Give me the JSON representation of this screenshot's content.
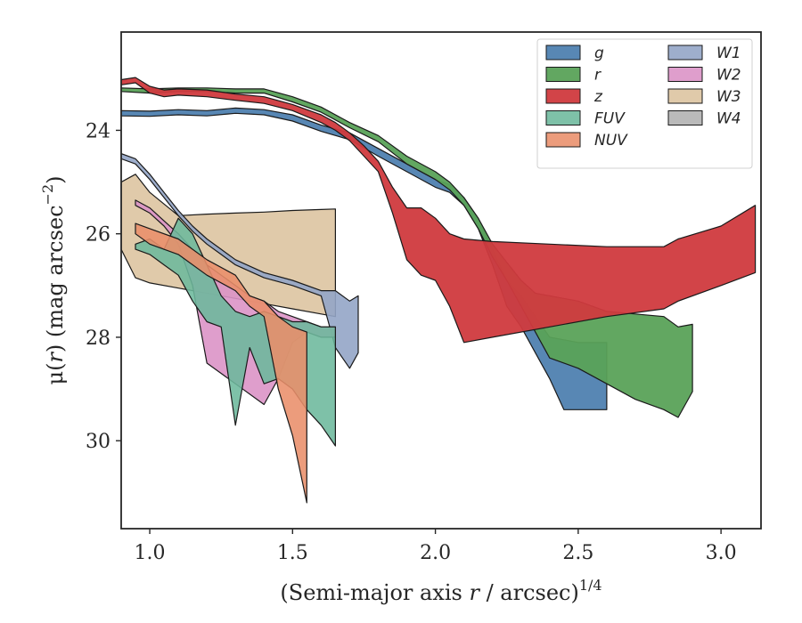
{
  "chart_data": {
    "type": "area",
    "title": "",
    "xlabel": {
      "text": "(Semi-major axis ",
      "var": "r",
      "unit": " / arcsec)",
      "sup": "1/4"
    },
    "ylabel": {
      "text": "μ(",
      "var": "r",
      "unit": ") (mag arcsec",
      "sup": "−2",
      "close": ")"
    },
    "xlim": [
      0.9,
      3.14
    ],
    "ylim": [
      31.7,
      22.1
    ],
    "y_inverted": true,
    "grid": false,
    "xticks": [
      1.0,
      1.5,
      2.0,
      2.5,
      3.0
    ],
    "xtick_labels": [
      "1.0",
      "1.5",
      "2.0",
      "2.5",
      "3.0"
    ],
    "yticks": [
      24,
      26,
      28,
      30
    ],
    "ytick_labels": [
      "24",
      "26",
      "28",
      "30"
    ],
    "legend": {
      "location": "top-right",
      "columns": 2
    },
    "series": [
      {
        "name": "g",
        "color": "#4f81b0",
        "opacity": 0.95,
        "upper": [
          [
            0.9,
            23.62
          ],
          [
            1.0,
            23.63
          ],
          [
            1.1,
            23.6
          ],
          [
            1.2,
            23.62
          ],
          [
            1.3,
            23.57
          ],
          [
            1.4,
            23.6
          ],
          [
            1.5,
            23.7
          ],
          [
            1.6,
            23.9
          ],
          [
            1.7,
            24.05
          ],
          [
            1.8,
            24.35
          ],
          [
            1.9,
            24.65
          ],
          [
            2.0,
            24.95
          ],
          [
            2.05,
            25.05
          ],
          [
            2.1,
            25.3
          ],
          [
            2.15,
            25.7
          ],
          [
            2.2,
            26.3
          ],
          [
            2.25,
            26.9
          ],
          [
            2.3,
            27.2
          ],
          [
            2.35,
            27.6
          ],
          [
            2.4,
            28.0
          ],
          [
            2.45,
            28.05
          ],
          [
            2.5,
            28.1
          ],
          [
            2.6,
            28.1
          ]
        ],
        "lower": [
          [
            0.9,
            23.72
          ],
          [
            1.0,
            23.73
          ],
          [
            1.1,
            23.7
          ],
          [
            1.2,
            23.72
          ],
          [
            1.3,
            23.67
          ],
          [
            1.4,
            23.7
          ],
          [
            1.5,
            23.82
          ],
          [
            1.6,
            24.02
          ],
          [
            1.7,
            24.18
          ],
          [
            1.8,
            24.5
          ],
          [
            1.9,
            24.8
          ],
          [
            2.0,
            25.1
          ],
          [
            2.05,
            25.2
          ],
          [
            2.1,
            25.45
          ],
          [
            2.15,
            25.9
          ],
          [
            2.2,
            26.6
          ],
          [
            2.25,
            27.4
          ],
          [
            2.3,
            27.8
          ],
          [
            2.35,
            28.3
          ],
          [
            2.4,
            28.8
          ],
          [
            2.45,
            29.4
          ],
          [
            2.5,
            29.4
          ],
          [
            2.6,
            29.4
          ]
        ]
      },
      {
        "name": "r",
        "color": "#5aa258",
        "opacity": 0.95,
        "upper": [
          [
            0.9,
            23.18
          ],
          [
            1.0,
            23.2
          ],
          [
            1.1,
            23.18
          ],
          [
            1.2,
            23.18
          ],
          [
            1.3,
            23.2
          ],
          [
            1.4,
            23.2
          ],
          [
            1.5,
            23.35
          ],
          [
            1.6,
            23.55
          ],
          [
            1.7,
            23.85
          ],
          [
            1.8,
            24.1
          ],
          [
            1.9,
            24.5
          ],
          [
            2.0,
            24.8
          ],
          [
            2.05,
            25.0
          ],
          [
            2.1,
            25.3
          ],
          [
            2.15,
            25.7
          ],
          [
            2.2,
            26.2
          ],
          [
            2.25,
            26.55
          ],
          [
            2.3,
            26.9
          ],
          [
            2.35,
            27.15
          ],
          [
            2.4,
            27.2
          ],
          [
            2.5,
            27.3
          ],
          [
            2.6,
            27.5
          ],
          [
            2.7,
            27.55
          ],
          [
            2.8,
            27.6
          ],
          [
            2.85,
            27.8
          ],
          [
            2.9,
            27.75
          ]
        ],
        "lower": [
          [
            0.9,
            23.25
          ],
          [
            1.0,
            23.28
          ],
          [
            1.1,
            23.25
          ],
          [
            1.2,
            23.25
          ],
          [
            1.3,
            23.28
          ],
          [
            1.4,
            23.28
          ],
          [
            1.5,
            23.45
          ],
          [
            1.6,
            23.65
          ],
          [
            1.7,
            23.95
          ],
          [
            1.8,
            24.22
          ],
          [
            1.9,
            24.65
          ],
          [
            2.0,
            24.95
          ],
          [
            2.05,
            25.15
          ],
          [
            2.1,
            25.45
          ],
          [
            2.15,
            25.9
          ],
          [
            2.2,
            26.45
          ],
          [
            2.25,
            26.9
          ],
          [
            2.3,
            27.4
          ],
          [
            2.35,
            27.9
          ],
          [
            2.4,
            28.4
          ],
          [
            2.5,
            28.6
          ],
          [
            2.6,
            28.9
          ],
          [
            2.7,
            29.2
          ],
          [
            2.8,
            29.4
          ],
          [
            2.85,
            29.55
          ],
          [
            2.9,
            29.05
          ]
        ]
      },
      {
        "name": "z",
        "color": "#d03a3e",
        "opacity": 0.95,
        "upper": [
          [
            0.9,
            23.02
          ],
          [
            0.95,
            22.98
          ],
          [
            1.0,
            23.15
          ],
          [
            1.05,
            23.22
          ],
          [
            1.1,
            23.2
          ],
          [
            1.2,
            23.22
          ],
          [
            1.3,
            23.3
          ],
          [
            1.4,
            23.35
          ],
          [
            1.5,
            23.5
          ],
          [
            1.6,
            23.7
          ],
          [
            1.65,
            23.85
          ],
          [
            1.7,
            24.05
          ],
          [
            1.75,
            24.3
          ],
          [
            1.8,
            24.6
          ],
          [
            1.85,
            25.1
          ],
          [
            1.9,
            25.5
          ],
          [
            1.95,
            25.5
          ],
          [
            2.0,
            25.7
          ],
          [
            2.05,
            26.0
          ],
          [
            2.1,
            26.1
          ],
          [
            2.2,
            26.15
          ],
          [
            2.4,
            26.2
          ],
          [
            2.6,
            26.25
          ],
          [
            2.8,
            26.25
          ],
          [
            2.85,
            26.1
          ],
          [
            3.0,
            25.85
          ],
          [
            3.12,
            25.45
          ]
        ],
        "lower": [
          [
            0.9,
            23.12
          ],
          [
            0.95,
            23.08
          ],
          [
            1.0,
            23.28
          ],
          [
            1.05,
            23.35
          ],
          [
            1.1,
            23.32
          ],
          [
            1.2,
            23.35
          ],
          [
            1.3,
            23.42
          ],
          [
            1.4,
            23.48
          ],
          [
            1.5,
            23.62
          ],
          [
            1.6,
            23.85
          ],
          [
            1.65,
            24.0
          ],
          [
            1.7,
            24.2
          ],
          [
            1.75,
            24.5
          ],
          [
            1.8,
            24.8
          ],
          [
            1.85,
            25.6
          ],
          [
            1.9,
            26.5
          ],
          [
            1.95,
            26.8
          ],
          [
            2.0,
            26.9
          ],
          [
            2.05,
            27.4
          ],
          [
            2.1,
            28.1
          ],
          [
            2.2,
            28.0
          ],
          [
            2.4,
            27.8
          ],
          [
            2.6,
            27.6
          ],
          [
            2.8,
            27.45
          ],
          [
            2.85,
            27.3
          ],
          [
            3.0,
            27.0
          ],
          [
            3.12,
            26.75
          ]
        ]
      },
      {
        "name": "FUV",
        "color": "#6cb89c",
        "opacity": 0.88,
        "upper": [
          [
            0.95,
            26.2
          ],
          [
            1.0,
            26.1
          ],
          [
            1.05,
            26.3
          ],
          [
            1.1,
            25.7
          ],
          [
            1.15,
            26.0
          ],
          [
            1.2,
            26.6
          ],
          [
            1.25,
            27.2
          ],
          [
            1.3,
            27.5
          ],
          [
            1.35,
            27.6
          ],
          [
            1.4,
            27.5
          ],
          [
            1.45,
            27.6
          ],
          [
            1.5,
            27.7
          ],
          [
            1.55,
            27.7
          ],
          [
            1.6,
            27.8
          ],
          [
            1.65,
            27.8
          ]
        ],
        "lower": [
          [
            0.95,
            26.3
          ],
          [
            1.0,
            26.4
          ],
          [
            1.05,
            26.6
          ],
          [
            1.1,
            26.8
          ],
          [
            1.15,
            27.3
          ],
          [
            1.2,
            27.7
          ],
          [
            1.25,
            27.8
          ],
          [
            1.3,
            29.7
          ],
          [
            1.35,
            28.2
          ],
          [
            1.4,
            28.9
          ],
          [
            1.45,
            28.8
          ],
          [
            1.5,
            29.0
          ],
          [
            1.55,
            29.4
          ],
          [
            1.6,
            29.7
          ],
          [
            1.65,
            30.1
          ]
        ]
      },
      {
        "name": "NUV",
        "color": "#e98e6a",
        "opacity": 0.88,
        "upper": [
          [
            0.95,
            25.8
          ],
          [
            1.0,
            25.9
          ],
          [
            1.1,
            26.1
          ],
          [
            1.2,
            26.5
          ],
          [
            1.3,
            26.8
          ],
          [
            1.35,
            27.2
          ],
          [
            1.4,
            27.3
          ],
          [
            1.45,
            27.6
          ],
          [
            1.5,
            27.8
          ],
          [
            1.55,
            27.9
          ]
        ],
        "lower": [
          [
            0.95,
            26.0
          ],
          [
            1.0,
            26.2
          ],
          [
            1.1,
            26.4
          ],
          [
            1.2,
            26.8
          ],
          [
            1.3,
            27.1
          ],
          [
            1.35,
            27.4
          ],
          [
            1.4,
            27.6
          ],
          [
            1.45,
            29.0
          ],
          [
            1.5,
            29.9
          ],
          [
            1.55,
            31.2
          ]
        ]
      },
      {
        "name": "W1",
        "color": "#93a5c7",
        "opacity": 0.9,
        "upper": [
          [
            0.9,
            24.45
          ],
          [
            0.95,
            24.55
          ],
          [
            1.0,
            24.85
          ],
          [
            1.05,
            25.2
          ],
          [
            1.1,
            25.55
          ],
          [
            1.15,
            25.85
          ],
          [
            1.2,
            26.1
          ],
          [
            1.25,
            26.3
          ],
          [
            1.3,
            26.5
          ],
          [
            1.4,
            26.75
          ],
          [
            1.5,
            26.9
          ],
          [
            1.6,
            27.1
          ],
          [
            1.65,
            27.1
          ],
          [
            1.7,
            27.3
          ],
          [
            1.73,
            27.2
          ]
        ],
        "lower": [
          [
            0.9,
            24.55
          ],
          [
            0.95,
            24.65
          ],
          [
            1.0,
            24.95
          ],
          [
            1.05,
            25.3
          ],
          [
            1.1,
            25.65
          ],
          [
            1.15,
            25.95
          ],
          [
            1.2,
            26.2
          ],
          [
            1.25,
            26.4
          ],
          [
            1.3,
            26.6
          ],
          [
            1.4,
            26.85
          ],
          [
            1.5,
            27.0
          ],
          [
            1.6,
            27.2
          ],
          [
            1.65,
            28.2
          ],
          [
            1.7,
            28.6
          ],
          [
            1.73,
            28.3
          ]
        ]
      },
      {
        "name": "W2",
        "color": "#dc94c6",
        "opacity": 0.9,
        "upper": [
          [
            0.95,
            25.35
          ],
          [
            1.0,
            25.5
          ],
          [
            1.05,
            25.75
          ],
          [
            1.1,
            26.0
          ],
          [
            1.15,
            26.3
          ],
          [
            1.2,
            26.6
          ],
          [
            1.25,
            26.8
          ],
          [
            1.3,
            27.0
          ],
          [
            1.35,
            27.2
          ],
          [
            1.4,
            27.3
          ],
          [
            1.45,
            27.5
          ],
          [
            1.5,
            27.6
          ],
          [
            1.55,
            27.7
          ],
          [
            1.6,
            27.8
          ],
          [
            1.65,
            27.8
          ]
        ],
        "lower": [
          [
            0.95,
            25.45
          ],
          [
            1.0,
            25.6
          ],
          [
            1.05,
            25.85
          ],
          [
            1.1,
            26.2
          ],
          [
            1.15,
            27.0
          ],
          [
            1.2,
            28.5
          ],
          [
            1.3,
            28.9
          ],
          [
            1.4,
            29.3
          ],
          [
            1.45,
            28.8
          ],
          [
            1.5,
            28.1
          ],
          [
            1.55,
            27.9
          ],
          [
            1.6,
            28.0
          ],
          [
            1.65,
            28.0
          ]
        ]
      },
      {
        "name": "W3",
        "color": "#dcc39e",
        "opacity": 0.88,
        "upper": [
          [
            0.9,
            25.0
          ],
          [
            0.95,
            24.85
          ],
          [
            1.0,
            25.2
          ],
          [
            1.1,
            25.65
          ],
          [
            1.2,
            25.62
          ],
          [
            1.3,
            25.6
          ],
          [
            1.4,
            25.58
          ],
          [
            1.5,
            25.55
          ],
          [
            1.6,
            25.53
          ],
          [
            1.65,
            25.52
          ]
        ],
        "lower": [
          [
            0.9,
            26.3
          ],
          [
            0.95,
            26.85
          ],
          [
            1.0,
            26.95
          ],
          [
            1.1,
            27.05
          ],
          [
            1.2,
            27.15
          ],
          [
            1.3,
            27.25
          ],
          [
            1.4,
            27.35
          ],
          [
            1.5,
            27.45
          ],
          [
            1.6,
            27.55
          ],
          [
            1.65,
            27.6
          ]
        ]
      },
      {
        "name": "W4",
        "color": "#b3b3b3",
        "opacity": 0.9,
        "upper": [],
        "lower": []
      }
    ]
  }
}
